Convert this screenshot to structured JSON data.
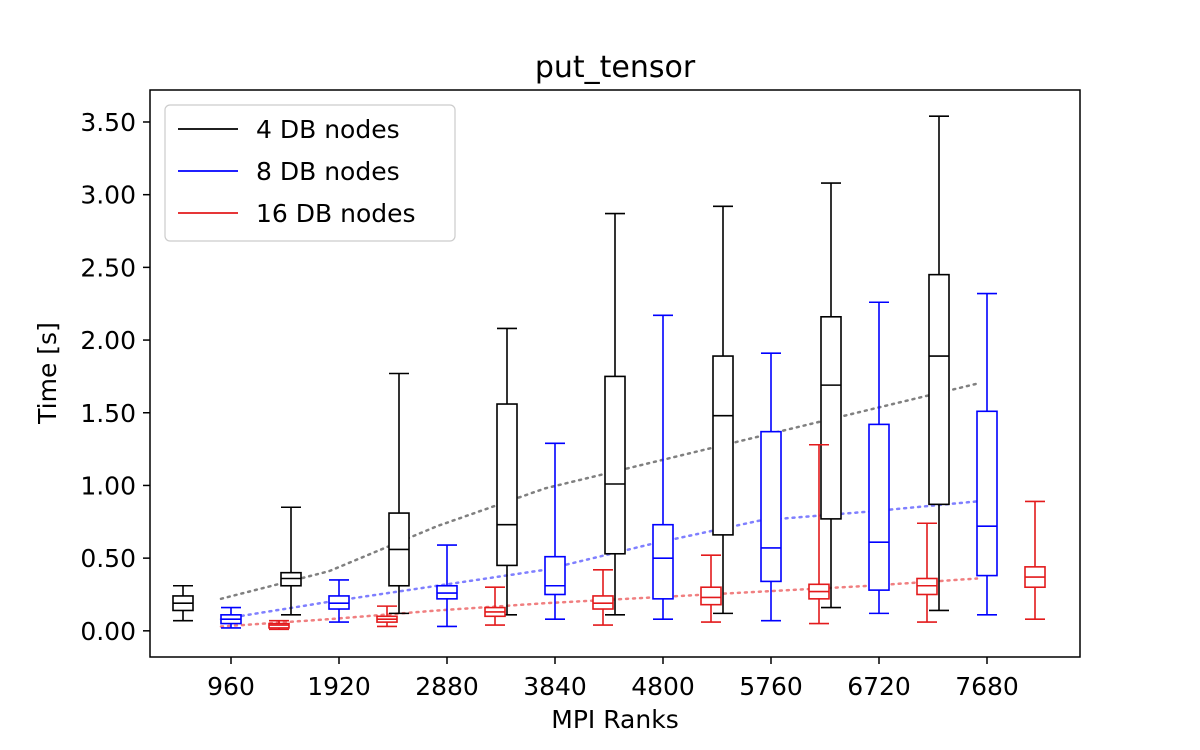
{
  "chart_data": {
    "type": "box",
    "title": "put_tensor",
    "xlabel": "MPI Ranks",
    "ylabel": "Time [s]",
    "ylim": [
      -0.18,
      3.72
    ],
    "yticks": [
      0.0,
      0.5,
      1.0,
      1.5,
      2.0,
      2.5,
      3.0,
      3.5
    ],
    "ytick_labels": [
      "0.00",
      "0.50",
      "1.00",
      "1.50",
      "2.00",
      "2.50",
      "3.00",
      "3.50"
    ],
    "categories": [
      "960",
      "1920",
      "2880",
      "3840",
      "4800",
      "5760",
      "6720",
      "7680"
    ],
    "legend": {
      "placement": "upper-left"
    },
    "grid": false,
    "series": [
      {
        "name": "4 DB nodes",
        "color": "#000000",
        "trend_color": "#808080",
        "boxes": [
          {
            "whisker_low": 0.07,
            "q1": 0.14,
            "median": 0.19,
            "q3": 0.24,
            "whisker_high": 0.31
          },
          {
            "whisker_low": 0.11,
            "q1": 0.31,
            "median": 0.36,
            "q3": 0.4,
            "whisker_high": 0.85
          },
          {
            "whisker_low": 0.12,
            "q1": 0.31,
            "median": 0.56,
            "q3": 0.81,
            "whisker_high": 1.77
          },
          {
            "whisker_low": 0.11,
            "q1": 0.45,
            "median": 0.73,
            "q3": 1.56,
            "whisker_high": 2.08
          },
          {
            "whisker_low": 0.11,
            "q1": 0.53,
            "median": 1.01,
            "q3": 1.75,
            "whisker_high": 2.87
          },
          {
            "whisker_low": 0.12,
            "q1": 0.66,
            "median": 1.48,
            "q3": 1.89,
            "whisker_high": 2.92
          },
          {
            "whisker_low": 0.16,
            "q1": 0.77,
            "median": 1.69,
            "q3": 2.16,
            "whisker_high": 3.08
          },
          {
            "whisker_low": 0.14,
            "q1": 0.87,
            "median": 1.89,
            "q3": 2.45,
            "whisker_high": 3.54
          }
        ],
        "trend": [
          0.22,
          0.41,
          0.72,
          0.98,
          1.16,
          1.34,
          1.52,
          1.7
        ]
      },
      {
        "name": "8 DB nodes",
        "color": "#0000ff",
        "trend_color": "#7f7fff",
        "boxes": [
          {
            "whisker_low": 0.02,
            "q1": 0.05,
            "median": 0.08,
            "q3": 0.11,
            "whisker_high": 0.16
          },
          {
            "whisker_low": 0.06,
            "q1": 0.15,
            "median": 0.19,
            "q3": 0.24,
            "whisker_high": 0.35
          },
          {
            "whisker_low": 0.03,
            "q1": 0.22,
            "median": 0.26,
            "q3": 0.31,
            "whisker_high": 0.59
          },
          {
            "whisker_low": 0.08,
            "q1": 0.25,
            "median": 0.31,
            "q3": 0.51,
            "whisker_high": 1.29
          },
          {
            "whisker_low": 0.08,
            "q1": 0.22,
            "median": 0.5,
            "q3": 0.73,
            "whisker_high": 2.17
          },
          {
            "whisker_low": 0.07,
            "q1": 0.34,
            "median": 0.57,
            "q3": 1.37,
            "whisker_high": 1.91
          },
          {
            "whisker_low": 0.12,
            "q1": 0.28,
            "median": 0.61,
            "q3": 1.42,
            "whisker_high": 2.26
          },
          {
            "whisker_low": 0.11,
            "q1": 0.38,
            "median": 0.72,
            "q3": 1.51,
            "whisker_high": 2.32
          }
        ],
        "trend": [
          0.08,
          0.2,
          0.31,
          0.42,
          0.6,
          0.76,
          0.82,
          0.89
        ]
      },
      {
        "name": "16 DB nodes",
        "color": "#e31a1c",
        "trend_color": "#f07f80",
        "boxes": [
          {
            "whisker_low": 0.01,
            "q1": 0.02,
            "median": 0.04,
            "q3": 0.05,
            "whisker_high": 0.07
          },
          {
            "whisker_low": 0.03,
            "q1": 0.06,
            "median": 0.08,
            "q3": 0.1,
            "whisker_high": 0.17
          },
          {
            "whisker_low": 0.04,
            "q1": 0.1,
            "median": 0.13,
            "q3": 0.16,
            "whisker_high": 0.3
          },
          {
            "whisker_low": 0.04,
            "q1": 0.15,
            "median": 0.19,
            "q3": 0.24,
            "whisker_high": 0.42
          },
          {
            "whisker_low": 0.06,
            "q1": 0.18,
            "median": 0.23,
            "q3": 0.3,
            "whisker_high": 0.52
          },
          {
            "whisker_low": 0.05,
            "q1": 0.22,
            "median": 0.27,
            "q3": 0.32,
            "whisker_high": 1.28
          },
          {
            "whisker_low": 0.06,
            "q1": 0.25,
            "median": 0.31,
            "q3": 0.36,
            "whisker_high": 0.74
          },
          {
            "whisker_low": 0.08,
            "q1": 0.3,
            "median": 0.37,
            "q3": 0.44,
            "whisker_high": 0.89
          }
        ],
        "trend": [
          0.03,
          0.08,
          0.14,
          0.19,
          0.23,
          0.27,
          0.31,
          0.36
        ]
      }
    ]
  }
}
